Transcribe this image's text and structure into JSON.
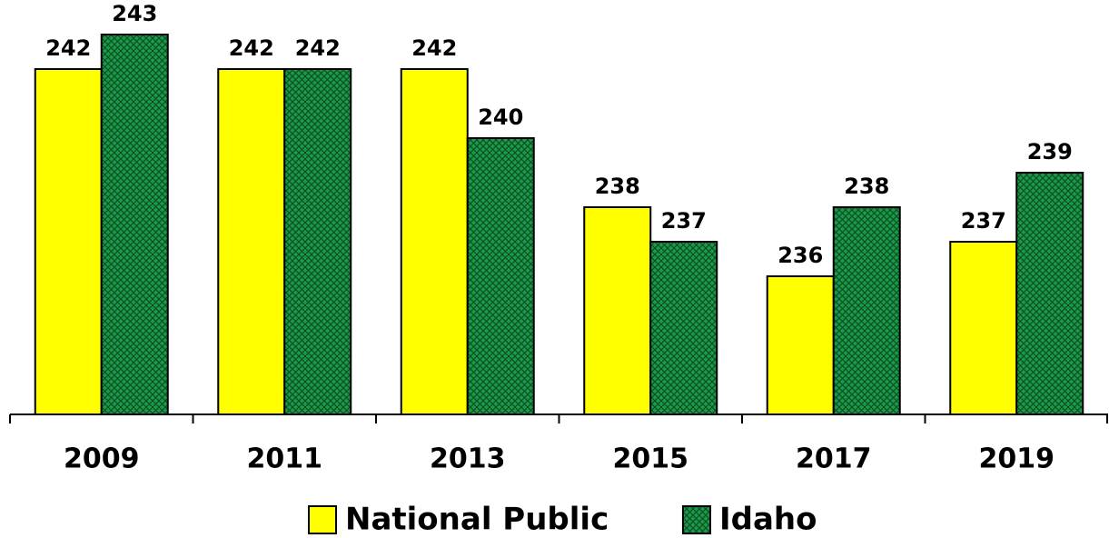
{
  "chart_data": {
    "type": "bar",
    "categories": [
      "2009",
      "2011",
      "2013",
      "2015",
      "2017",
      "2019"
    ],
    "series": [
      {
        "name": "National Public",
        "color": "#ffff00",
        "values": [
          242,
          242,
          242,
          238,
          236,
          237
        ]
      },
      {
        "name": "Idaho",
        "color": "#1a9a4a",
        "pattern": "crosshatch",
        "values": [
          243,
          242,
          240,
          237,
          238,
          239
        ]
      }
    ],
    "ylim": [
      232,
      244
    ],
    "legend": "bottom"
  }
}
